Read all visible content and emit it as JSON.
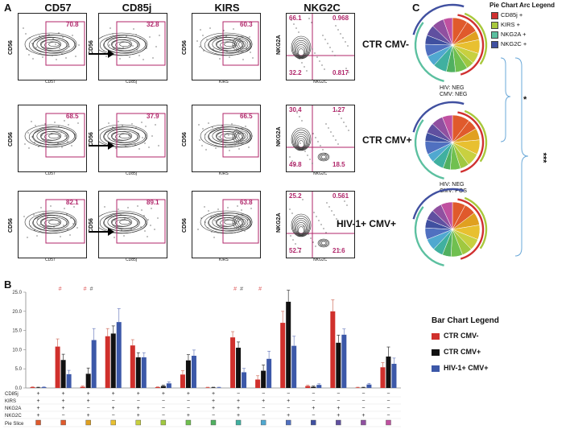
{
  "panel_labels": {
    "a": "A",
    "b": "B",
    "c": "C"
  },
  "flow": {
    "columns": [
      "CD57",
      "CD85j",
      "KIRS",
      "NKG2C"
    ],
    "rows": [
      {
        "cd57": "70.8",
        "cd85j": "32.8",
        "kirs": "60.3",
        "nkg2c": [
          "66.1",
          "0.968",
          "32.2",
          "0.817"
        ]
      },
      {
        "cd57": "68.5",
        "cd85j": "37.9",
        "kirs": "66.5",
        "nkg2c": [
          "30.4",
          "1.27",
          "49.8",
          "18.5"
        ]
      },
      {
        "cd57": "82.1",
        "cd85j": "89.1",
        "kirs": "63.8",
        "nkg2c": [
          "25.2",
          "0.561",
          "52.7",
          "21.6"
        ]
      }
    ],
    "y_axis": "CD56",
    "y_axis_nkg2c": "NKG2A",
    "x_axes": [
      "CD57",
      "CD85j",
      "KIRS",
      "NKG2C"
    ]
  },
  "pies": {
    "groups": [
      "CTR CMV-",
      "CTR CMV+",
      "HIV-1+ CMV+"
    ],
    "notes": [
      [
        "HIV: NEG",
        "CMV: NEG"
      ],
      [
        "HIV: NEG",
        "CMV: POS"
      ]
    ],
    "legend_title": "Pie Chart Arc Legend",
    "legend": [
      {
        "label": "CD85j +",
        "color": "#d03030"
      },
      {
        "label": "KIRS +",
        "color": "#a8c83c"
      },
      {
        "label": "NKG2A +",
        "color": "#5cc0a0"
      },
      {
        "label": "NKG2C +",
        "color": "#4050a0"
      }
    ],
    "significance": [
      "*",
      "***"
    ]
  },
  "chart_data": {
    "type": "bar",
    "title": "",
    "ylim": [
      0,
      25
    ],
    "yticks": [
      "25.0",
      "20.0",
      "15.0",
      "10.0",
      "5.0",
      "0.0"
    ],
    "legend_title": "Bar Chart Legend",
    "series": [
      {
        "name": "CTR CMV-",
        "color": "#d0302c",
        "values": [
          0.2,
          10.8,
          0.3,
          13.5,
          11.1,
          0.2,
          3.5,
          0.1,
          13.2,
          2.2,
          17.0,
          0.5,
          20.0,
          0.1,
          5.4
        ]
      },
      {
        "name": "CTR CMV+",
        "color": "#111111",
        "values": [
          0.1,
          7.3,
          3.7,
          14.2,
          8.0,
          0.5,
          7.2,
          0.1,
          10.5,
          4.5,
          22.5,
          0.3,
          11.8,
          0.1,
          8.2
        ]
      },
      {
        "name": "HIV-1+ CMV+",
        "color": "#3c58a8",
        "values": [
          0.2,
          3.6,
          12.5,
          17.2,
          8.0,
          1.2,
          8.4,
          0.1,
          4.1,
          7.6,
          11.0,
          0.8,
          13.9,
          0.9,
          6.3
        ]
      }
    ],
    "errors": [
      [
        0.1,
        2.0,
        0.2,
        2.0,
        1.5,
        0.1,
        1.0,
        0.1,
        1.5,
        1.0,
        3.0,
        0.2,
        3.0,
        0.1,
        1.2
      ],
      [
        0.1,
        1.5,
        1.5,
        2.0,
        1.2,
        0.2,
        1.5,
        0.1,
        1.5,
        1.5,
        3.0,
        0.2,
        2.0,
        0.1,
        2.5
      ],
      [
        0.1,
        1.0,
        3.0,
        3.5,
        1.2,
        0.4,
        1.5,
        0.1,
        1.0,
        2.0,
        2.5,
        0.3,
        1.5,
        0.3,
        1.5
      ]
    ],
    "marks": [
      {
        "index": 1,
        "text": "#",
        "color": "#e06060"
      },
      {
        "index": 2,
        "text": "#",
        "color": "#e06060"
      },
      {
        "index": 2,
        "text": "#",
        "color": "#666666"
      },
      {
        "index": 8,
        "text": "#",
        "color": "#e06060"
      },
      {
        "index": 8,
        "text": "#",
        "color": "#666666"
      },
      {
        "index": 9,
        "text": "#",
        "color": "#e06060"
      }
    ],
    "row_labels": [
      "CD85j",
      "KIRS",
      "NKG2A",
      "NKG2C",
      "Pie Slice"
    ],
    "sign_table": [
      [
        "+",
        "+",
        "+",
        "+",
        "+",
        "+",
        "+",
        "+",
        "−",
        "−",
        "−",
        "−",
        "−",
        "−",
        "−"
      ],
      [
        "+",
        "+",
        "+",
        "−",
        "−",
        "−",
        "−",
        "+",
        "+",
        "+",
        "+",
        "−",
        "−",
        "−",
        "−"
      ],
      [
        "+",
        "+",
        "−",
        "+",
        "+",
        "−",
        "−",
        "+",
        "+",
        "−",
        "−",
        "+",
        "+",
        "−",
        "−"
      ],
      [
        "+",
        "−",
        "+",
        "−",
        "+",
        "−",
        "+",
        "−",
        "+",
        "−",
        "+",
        "−",
        "+",
        "+",
        "−"
      ]
    ],
    "slice_colors": [
      "#e05a2c",
      "#e05a2c",
      "#e0a020",
      "#e8c030",
      "#c8d040",
      "#a0c840",
      "#70c050",
      "#50b060",
      "#40b0a0",
      "#50a8d0",
      "#5070c0",
      "#4050a0",
      "#6050a0",
      "#9050a0",
      "#c050a0"
    ]
  }
}
